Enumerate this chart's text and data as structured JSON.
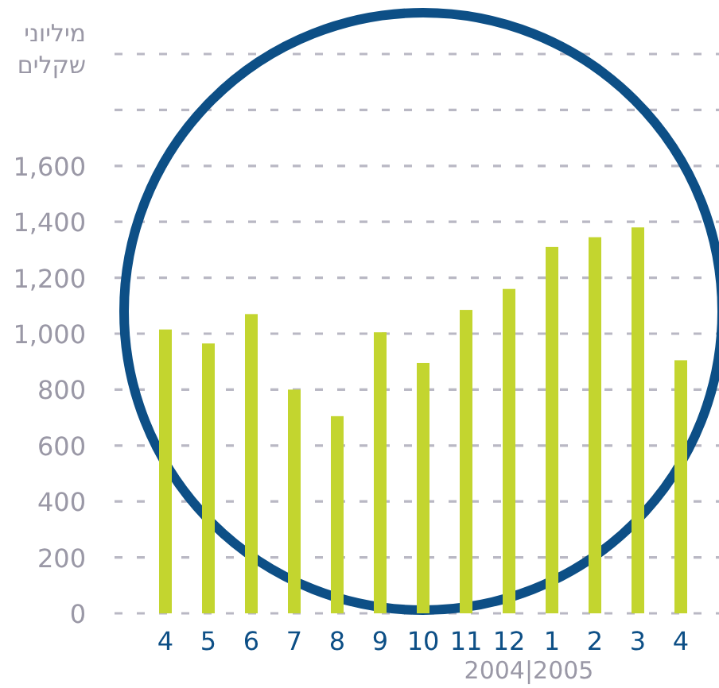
{
  "chart_data": {
    "type": "bar",
    "ylabel": "מיליוני שקלים",
    "categories": [
      "4",
      "5",
      "6",
      "7",
      "8",
      "9",
      "10",
      "11",
      "12",
      "1",
      "2",
      "3",
      "4"
    ],
    "series": [
      {
        "color": "#c3d52f",
        "values": [
          1015,
          965,
          1070,
          800,
          705,
          1005,
          895,
          1085,
          1160,
          1310,
          1345,
          1380,
          905
        ]
      }
    ],
    "ylim": [
      0,
      2000
    ],
    "yticks": [
      {
        "value": 0,
        "label": "0"
      },
      {
        "value": 200,
        "label": "200"
      },
      {
        "value": 400,
        "label": "400"
      },
      {
        "value": 600,
        "label": "600"
      },
      {
        "value": 800,
        "label": "800"
      },
      {
        "value": 1000,
        "label": "1,000"
      },
      {
        "value": 1200,
        "label": "1,200"
      },
      {
        "value": 1400,
        "label": "1,400"
      },
      {
        "value": 1600,
        "label": "1,600"
      },
      {
        "value": 1800,
        "label": null
      },
      {
        "value": 2000,
        "label": null
      }
    ],
    "grid": "y",
    "annotations": [
      "2004|2005"
    ]
  }
}
